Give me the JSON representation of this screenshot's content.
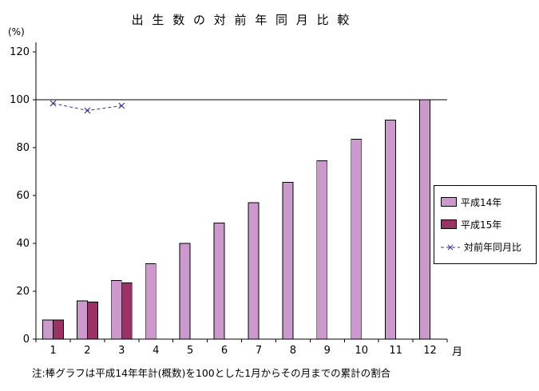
{
  "chart": {
    "title": "出 生 数 の 対 前 年 同 月 比 較",
    "y_unit_label": "(%)",
    "x_unit_label": "月",
    "note": "注:棒グラフは平成14年年計(概数)を100とした1月からその月までの累計の割合"
  },
  "colors": {
    "background": "#ffffff",
    "axis": "#000000",
    "h14_bar": "#cc99cc",
    "h15_bar": "#993366",
    "ratio_line": "#333399"
  },
  "chart_data": {
    "type": "bar",
    "title": "出生数の対前年同月比較",
    "categories": [
      "1",
      "2",
      "3",
      "4",
      "5",
      "6",
      "7",
      "8",
      "9",
      "10",
      "11",
      "12"
    ],
    "xlabel": "月",
    "ylabel": "(%)",
    "ylim": [
      0,
      120
    ],
    "yticks": [
      0,
      20,
      40,
      60,
      80,
      100,
      120
    ],
    "reference_line": 100,
    "grid": false,
    "legend_position": "right",
    "series": [
      {
        "name": "平成14年",
        "type": "bar",
        "color": "#cc99cc",
        "values": [
          8,
          16,
          24.5,
          31.5,
          40,
          48.5,
          57,
          65.5,
          74.5,
          83.5,
          91.5,
          100
        ]
      },
      {
        "name": "平成15年",
        "type": "bar",
        "color": "#993366",
        "values": [
          8,
          15.5,
          23.5,
          null,
          null,
          null,
          null,
          null,
          null,
          null,
          null,
          null
        ]
      },
      {
        "name": "対前年同月比",
        "type": "line",
        "color": "#333399",
        "marker": "x",
        "dashed": true,
        "values": [
          98.5,
          95.5,
          97.5,
          null,
          null,
          null,
          null,
          null,
          null,
          null,
          null,
          null
        ]
      }
    ]
  }
}
